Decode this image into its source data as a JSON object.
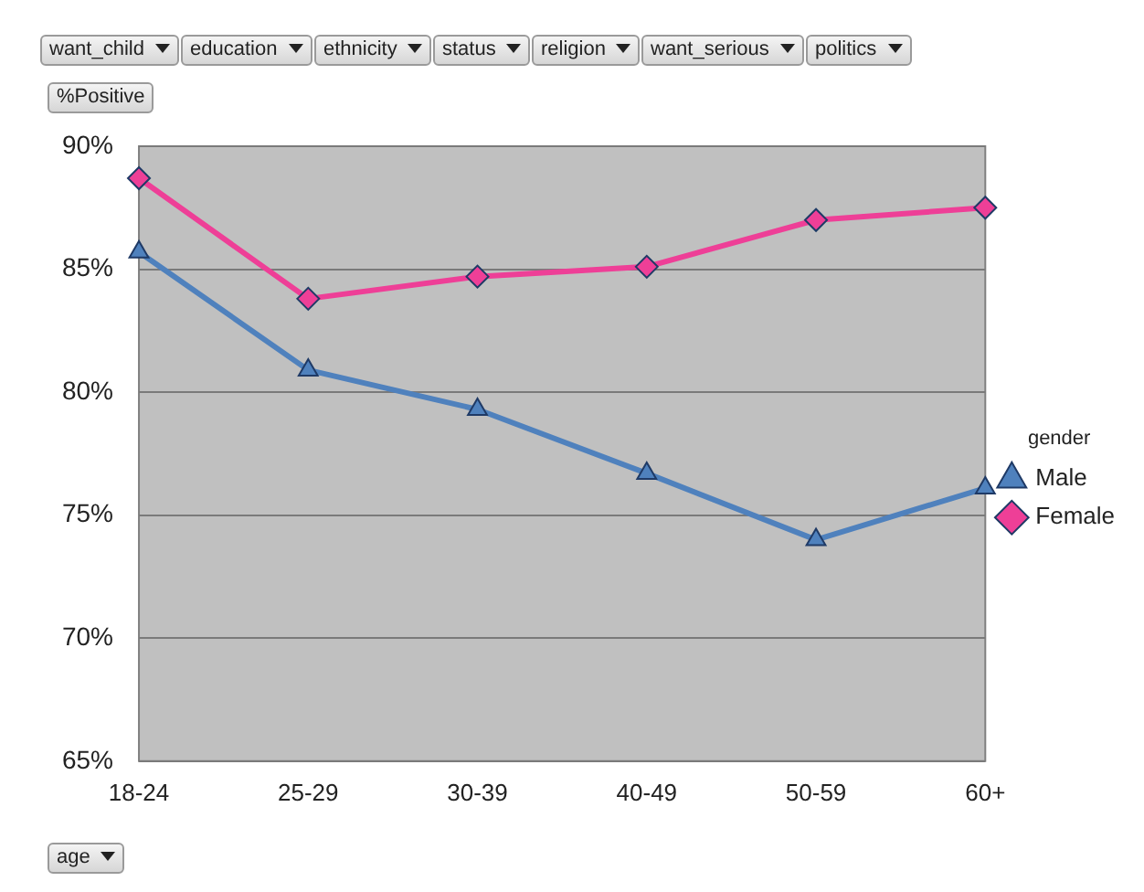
{
  "chart_data": {
    "type": "line",
    "ylabel": "%Positive",
    "xlabel": "age",
    "legend_title": "gender",
    "annotations": [
      "want_child",
      "education",
      "ethnicity",
      "status",
      "religion",
      "want_serious",
      "politics"
    ],
    "categories": [
      "18-24",
      "25-29",
      "30-39",
      "40-49",
      "50-59",
      "60+"
    ],
    "series": [
      {
        "name": "Male",
        "color": "#4f81bd",
        "marker": "triangle",
        "values": [
          85.7,
          80.9,
          79.3,
          76.7,
          74.0,
          76.1
        ]
      },
      {
        "name": "Female",
        "color": "#ee3f97",
        "marker": "diamond",
        "values": [
          88.7,
          83.8,
          84.7,
          85.1,
          87.0,
          87.5
        ]
      }
    ],
    "ylim": [
      65,
      90
    ],
    "yticks": [
      {
        "value": 65,
        "label": "65%"
      },
      {
        "value": 70,
        "label": "70%"
      },
      {
        "value": 75,
        "label": "75%"
      },
      {
        "value": 80,
        "label": "80%"
      },
      {
        "value": 85,
        "label": "85%"
      },
      {
        "value": 90,
        "label": "90%"
      }
    ],
    "grid": "y",
    "legend": "right",
    "line_style": "solid"
  }
}
